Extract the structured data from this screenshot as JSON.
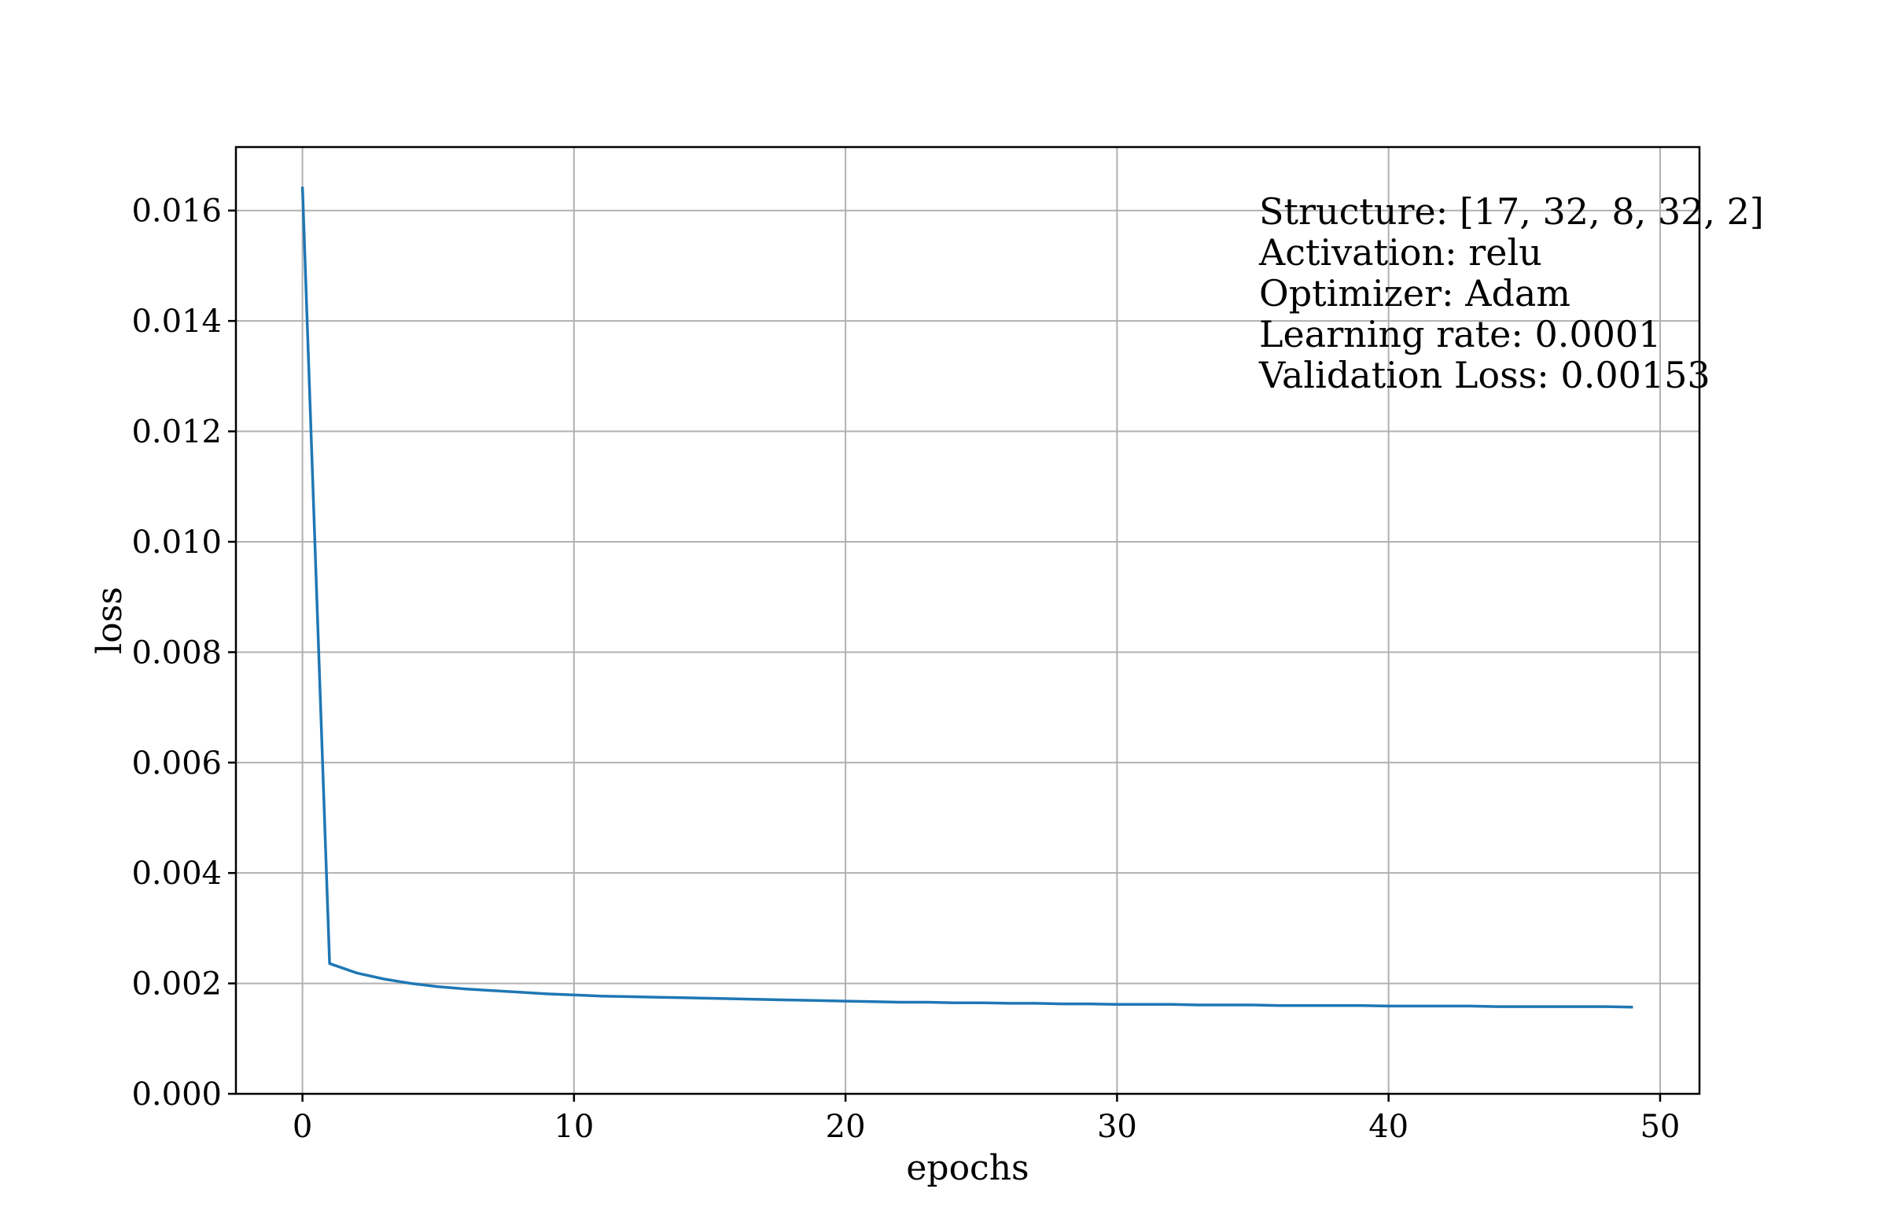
{
  "chart_data": {
    "type": "line",
    "title": "",
    "xlabel": "epochs",
    "ylabel": "loss",
    "xlim": [
      -2.45,
      51.45
    ],
    "ylim": [
      0.0,
      0.01715
    ],
    "grid": true,
    "legend": "none",
    "x_ticks": [
      0,
      10,
      20,
      30,
      40,
      50
    ],
    "x_tick_labels": [
      "0",
      "10",
      "20",
      "30",
      "40",
      "50"
    ],
    "y_ticks": [
      0.0,
      0.002,
      0.004,
      0.006,
      0.008,
      0.01,
      0.012,
      0.014,
      0.016
    ],
    "y_tick_labels": [
      "0.000",
      "0.002",
      "0.004",
      "0.006",
      "0.008",
      "0.010",
      "0.012",
      "0.014",
      "0.016"
    ],
    "series": [
      {
        "color": "#1f77b4",
        "x": [
          0,
          1,
          2,
          3,
          4,
          5,
          6,
          7,
          8,
          9,
          10,
          11,
          12,
          13,
          14,
          15,
          16,
          17,
          18,
          19,
          20,
          21,
          22,
          23,
          24,
          25,
          26,
          27,
          28,
          29,
          30,
          31,
          32,
          33,
          34,
          35,
          36,
          37,
          38,
          39,
          40,
          41,
          42,
          43,
          44,
          45,
          46,
          47,
          48,
          49
        ],
        "values": [
          0.01643,
          0.00236,
          0.00219,
          0.00208,
          0.002,
          0.00194,
          0.0019,
          0.00187,
          0.00184,
          0.00181,
          0.00179,
          0.00177,
          0.00176,
          0.00175,
          0.00174,
          0.00173,
          0.00172,
          0.00171,
          0.0017,
          0.00169,
          0.00168,
          0.00167,
          0.00166,
          0.00166,
          0.00165,
          0.00165,
          0.00164,
          0.00164,
          0.00163,
          0.00163,
          0.00162,
          0.00162,
          0.00162,
          0.00161,
          0.00161,
          0.00161,
          0.0016,
          0.0016,
          0.0016,
          0.0016,
          0.00159,
          0.00159,
          0.00159,
          0.00159,
          0.00158,
          0.00158,
          0.00158,
          0.00158,
          0.00158,
          0.00157
        ]
      }
    ],
    "annotations": [
      "Structure: [17, 32, 8, 32, 2]",
      "Activation: relu",
      "Optimizer: Adam",
      "Learning rate: 0.0001",
      "Validation Loss: 0.00153"
    ]
  }
}
